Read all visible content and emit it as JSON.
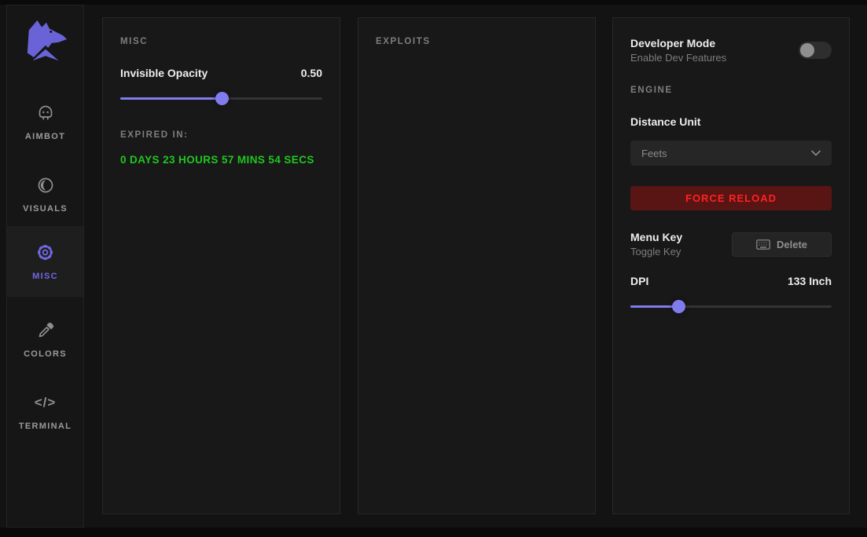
{
  "colors": {
    "accent_purple": "#817cee",
    "logo_purple": "#6a63d8",
    "countdown_green": "#1fc71f",
    "danger_text_red": "#ff2222",
    "danger_bg_red": "#591414",
    "panel_bg": "#181818",
    "page_bg": "#131313"
  },
  "sidebar": {
    "items": [
      {
        "label": "AIMBOT",
        "icon": "robot-icon",
        "active": false
      },
      {
        "label": "VISUALS",
        "icon": "contrast-icon",
        "active": false
      },
      {
        "label": "MISC",
        "icon": "gear-icon",
        "active": true
      },
      {
        "label": "COLORS",
        "icon": "eyedropper-icon",
        "active": false
      },
      {
        "label": "TERMINAL",
        "icon": "code-icon",
        "active": false
      }
    ],
    "code_glyph": "</>"
  },
  "misc_panel": {
    "title": "MISC",
    "invisible_opacity": {
      "label": "Invisible Opacity",
      "value": "0.50",
      "percent": 50
    },
    "expired_label": "EXPIRED IN:",
    "countdown": "0 DAYS 23 HOURS 57 MINS 54 SECS"
  },
  "exploits_panel": {
    "title": "EXPLOITS"
  },
  "settings_panel": {
    "developer_mode": {
      "label": "Developer Mode",
      "sublabel": "Enable Dev Features",
      "enabled": false
    },
    "engine_title": "ENGINE",
    "distance_unit": {
      "label": "Distance Unit",
      "selected": "Feets"
    },
    "force_reload_label": "FORCE RELOAD",
    "menu_key": {
      "label": "Menu Key",
      "sublabel": "Toggle Key",
      "button_label": "Delete"
    },
    "dpi": {
      "label": "DPI",
      "value": "133 Inch",
      "percent": 24
    }
  }
}
